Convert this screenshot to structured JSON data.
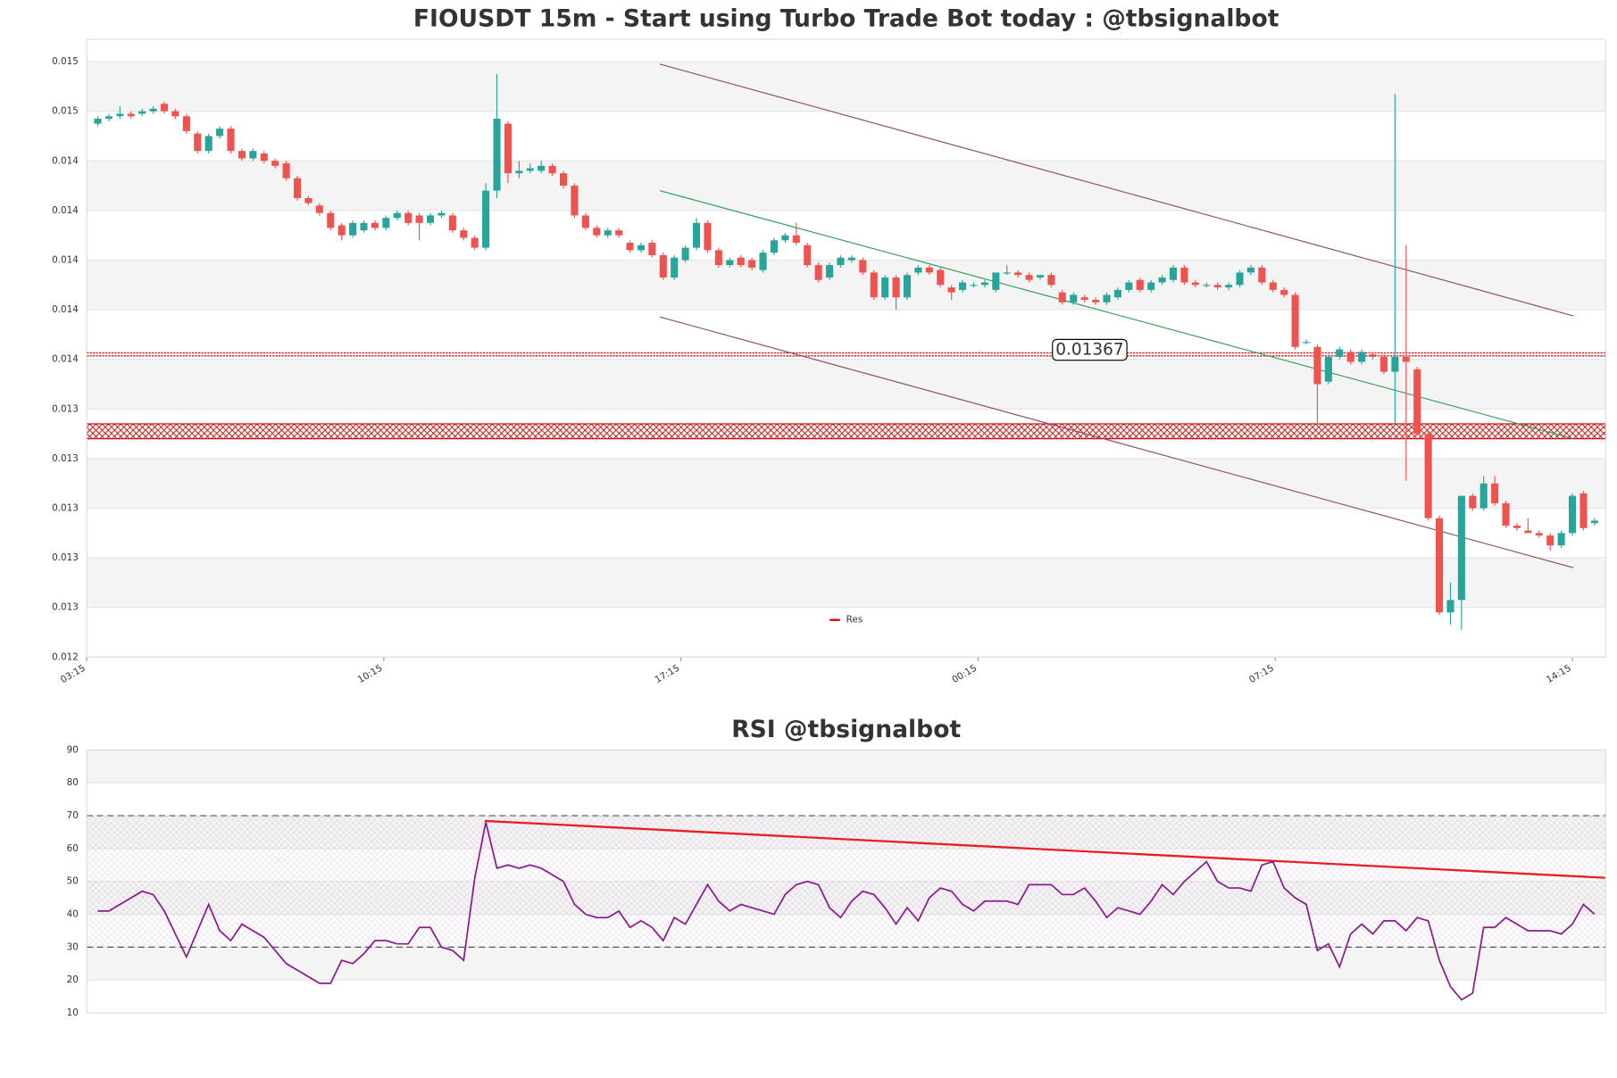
{
  "chart_data": [
    {
      "type": "candlestick",
      "title": "FIOUSDT 15m - Start using Turbo Trade Bot today : @tbsignalbot",
      "up_color": "#26a69a",
      "down_color": "#ef5350",
      "xlim": [
        0,
        137
      ],
      "xticks": [
        {
          "value": 0,
          "label": "03:15"
        },
        {
          "value": 26.8,
          "label": "10:15"
        },
        {
          "value": 53.6,
          "label": "17:15"
        },
        {
          "value": 80.4,
          "label": "00:15"
        },
        {
          "value": 107.2,
          "label": "07:15"
        },
        {
          "value": 134,
          "label": "14:15"
        }
      ],
      "ylim": [
        0.01245,
        0.01494
      ],
      "yticks": [
        {
          "value": 0.01245,
          "label": "0.012"
        },
        {
          "value": 0.01265,
          "label": "0.013"
        },
        {
          "value": 0.01285,
          "label": "0.013"
        },
        {
          "value": 0.01305,
          "label": "0.013"
        },
        {
          "value": 0.01325,
          "label": "0.013"
        },
        {
          "value": 0.01345,
          "label": "0.013"
        },
        {
          "value": 0.01365,
          "label": "0.014"
        },
        {
          "value": 0.01385,
          "label": "0.014"
        },
        {
          "value": 0.01405,
          "label": "0.014"
        },
        {
          "value": 0.01425,
          "label": "0.014"
        },
        {
          "value": 0.01445,
          "label": "0.014"
        },
        {
          "value": 0.01465,
          "label": "0.015"
        },
        {
          "value": 0.01485,
          "label": "0.015"
        }
      ],
      "legend": "lower center",
      "levels": [
        {
          "name": "Res",
          "value": 0.01367,
          "color": "#cc0000"
        }
      ],
      "zones": [
        {
          "from": 0.01333,
          "to": 0.01339,
          "color": "#cc0000"
        }
      ],
      "trendlines": [
        {
          "color": "#8e4d6b",
          "width": 1,
          "x": [
            51.7,
            134.1
          ],
          "y": [
            0.01484,
            0.013825
          ]
        },
        {
          "color": "#2e9e50",
          "width": 1,
          "x": [
            51.7,
            134.1
          ],
          "y": [
            0.01433,
            0.01333
          ]
        },
        {
          "color": "#8e4d6b",
          "width": 1,
          "x": [
            51.7,
            134.1
          ],
          "y": [
            0.013821,
            0.01281
          ]
        }
      ],
      "ohlc": [
        [
          0.0146,
          0.01463,
          0.01459,
          0.01462
        ],
        [
          0.01462,
          0.01464,
          0.01461,
          0.01463
        ],
        [
          0.01463,
          0.01467,
          0.01462,
          0.01464
        ],
        [
          0.01464,
          0.01465,
          0.01462,
          0.01463
        ],
        [
          0.01464,
          0.01466,
          0.01463,
          0.01465
        ],
        [
          0.01465,
          0.01467,
          0.01464,
          0.01466
        ],
        [
          0.01468,
          0.01469,
          0.01464,
          0.01465
        ],
        [
          0.01465,
          0.01466,
          0.01462,
          0.01463
        ],
        [
          0.01463,
          0.01464,
          0.01456,
          0.01457
        ],
        [
          0.01456,
          0.01457,
          0.01448,
          0.01449
        ],
        [
          0.01449,
          0.01456,
          0.01448,
          0.01455
        ],
        [
          0.01455,
          0.01459,
          0.01454,
          0.01458
        ],
        [
          0.01458,
          0.01459,
          0.01448,
          0.01449
        ],
        [
          0.01449,
          0.0145,
          0.01445,
          0.01446
        ],
        [
          0.01446,
          0.0145,
          0.01445,
          0.01449
        ],
        [
          0.01448,
          0.01449,
          0.01444,
          0.01445
        ],
        [
          0.01445,
          0.01446,
          0.01442,
          0.01443
        ],
        [
          0.01444,
          0.01445,
          0.01437,
          0.01438
        ],
        [
          0.01438,
          0.01439,
          0.01429,
          0.0143
        ],
        [
          0.0143,
          0.01431,
          0.01427,
          0.01428
        ],
        [
          0.01427,
          0.01428,
          0.01423,
          0.01424
        ],
        [
          0.01424,
          0.01425,
          0.01417,
          0.01418
        ],
        [
          0.01419,
          0.0142,
          0.01413,
          0.01415
        ],
        [
          0.01415,
          0.01421,
          0.01414,
          0.0142
        ],
        [
          0.01417,
          0.01421,
          0.01416,
          0.0142
        ],
        [
          0.0142,
          0.01421,
          0.01417,
          0.01418
        ],
        [
          0.01418,
          0.01423,
          0.01417,
          0.01422
        ],
        [
          0.01422,
          0.01425,
          0.01421,
          0.01424
        ],
        [
          0.01424,
          0.01425,
          0.01419,
          0.0142
        ],
        [
          0.01423,
          0.01424,
          0.01413,
          0.0142
        ],
        [
          0.0142,
          0.01424,
          0.01419,
          0.01423
        ],
        [
          0.01423,
          0.01425,
          0.01422,
          0.01424
        ],
        [
          0.01423,
          0.01424,
          0.01416,
          0.01417
        ],
        [
          0.01417,
          0.01418,
          0.01413,
          0.01414
        ],
        [
          0.01414,
          0.01415,
          0.01409,
          0.0141
        ],
        [
          0.0141,
          0.01436,
          0.01409,
          0.01433
        ],
        [
          0.01433,
          0.0148,
          0.0143,
          0.01462
        ],
        [
          0.0146,
          0.01461,
          0.01436,
          0.0144
        ],
        [
          0.0144,
          0.01445,
          0.01438,
          0.01441
        ],
        [
          0.01441,
          0.01444,
          0.0144,
          0.01442
        ],
        [
          0.01441,
          0.01445,
          0.0144,
          0.01443
        ],
        [
          0.01443,
          0.01444,
          0.01439,
          0.0144
        ],
        [
          0.0144,
          0.01441,
          0.01434,
          0.01435
        ],
        [
          0.01435,
          0.01436,
          0.01422,
          0.01423
        ],
        [
          0.01423,
          0.01424,
          0.01417,
          0.01418
        ],
        [
          0.01418,
          0.01419,
          0.01414,
          0.01415
        ],
        [
          0.01415,
          0.01418,
          0.01414,
          0.01417
        ],
        [
          0.01417,
          0.01418,
          0.01414,
          0.01415
        ],
        [
          0.01412,
          0.01413,
          0.01408,
          0.01409
        ],
        [
          0.01409,
          0.01412,
          0.01408,
          0.01411
        ],
        [
          0.01412,
          0.01413,
          0.01406,
          0.01407
        ],
        [
          0.01407,
          0.01408,
          0.01397,
          0.01398
        ],
        [
          0.01398,
          0.01407,
          0.01397,
          0.01406
        ],
        [
          0.01405,
          0.01411,
          0.01404,
          0.0141
        ],
        [
          0.0141,
          0.01422,
          0.01409,
          0.0142
        ],
        [
          0.0142,
          0.01421,
          0.01408,
          0.01409
        ],
        [
          0.01409,
          0.0141,
          0.01402,
          0.01403
        ],
        [
          0.01403,
          0.01406,
          0.01402,
          0.01405
        ],
        [
          0.01406,
          0.01407,
          0.01402,
          0.01403
        ],
        [
          0.01405,
          0.01406,
          0.01401,
          0.01402
        ],
        [
          0.01401,
          0.01409,
          0.014,
          0.01408
        ],
        [
          0.01408,
          0.01414,
          0.01407,
          0.01413
        ],
        [
          0.01413,
          0.01416,
          0.01412,
          0.01415
        ],
        [
          0.01415,
          0.0142,
          0.01411,
          0.01412
        ],
        [
          0.01411,
          0.01412,
          0.01402,
          0.01403
        ],
        [
          0.01403,
          0.01404,
          0.01396,
          0.01397
        ],
        [
          0.01398,
          0.01404,
          0.01397,
          0.01403
        ],
        [
          0.01403,
          0.01407,
          0.01402,
          0.01406
        ],
        [
          0.01405,
          0.01407,
          0.01404,
          0.01406
        ],
        [
          0.01405,
          0.01406,
          0.01399,
          0.014
        ],
        [
          0.014,
          0.01401,
          0.01389,
          0.0139
        ],
        [
          0.0139,
          0.01399,
          0.01389,
          0.01398
        ],
        [
          0.01398,
          0.01399,
          0.01385,
          0.0139
        ],
        [
          0.0139,
          0.014,
          0.01389,
          0.01399
        ],
        [
          0.014,
          0.01403,
          0.01399,
          0.01402
        ],
        [
          0.01402,
          0.01403,
          0.01399,
          0.014
        ],
        [
          0.01401,
          0.01402,
          0.01394,
          0.01395
        ],
        [
          0.01394,
          0.01395,
          0.01389,
          0.01392
        ],
        [
          0.01393,
          0.01397,
          0.01392,
          0.01396
        ],
        [
          0.01395,
          0.01396,
          0.01394,
          0.01395
        ],
        [
          0.01395,
          0.01397,
          0.01394,
          0.01396
        ],
        [
          0.01393,
          0.014,
          0.01392,
          0.014
        ],
        [
          0.014,
          0.01403,
          0.01399,
          0.014
        ],
        [
          0.014,
          0.01401,
          0.01398,
          0.01399
        ],
        [
          0.01399,
          0.014,
          0.01396,
          0.01397
        ],
        [
          0.01398,
          0.01399,
          0.01397,
          0.01399
        ],
        [
          0.01399,
          0.014,
          0.01394,
          0.01395
        ],
        [
          0.01392,
          0.01393,
          0.01387,
          0.01388
        ],
        [
          0.01388,
          0.01392,
          0.01387,
          0.01391
        ],
        [
          0.0139,
          0.01391,
          0.01388,
          0.01389
        ],
        [
          0.01389,
          0.0139,
          0.01387,
          0.01388
        ],
        [
          0.01388,
          0.01392,
          0.01387,
          0.01391
        ],
        [
          0.0139,
          0.01394,
          0.01389,
          0.01393
        ],
        [
          0.01393,
          0.01397,
          0.01392,
          0.01396
        ],
        [
          0.01397,
          0.01398,
          0.01392,
          0.01393
        ],
        [
          0.01393,
          0.01397,
          0.01392,
          0.01396
        ],
        [
          0.01396,
          0.01399,
          0.01395,
          0.01398
        ],
        [
          0.01397,
          0.01403,
          0.01396,
          0.01402
        ],
        [
          0.01402,
          0.01403,
          0.01395,
          0.01396
        ],
        [
          0.01396,
          0.01397,
          0.01394,
          0.01395
        ],
        [
          0.01395,
          0.01396,
          0.01394,
          0.01395
        ],
        [
          0.01395,
          0.01396,
          0.01393,
          0.01394
        ],
        [
          0.01394,
          0.01396,
          0.01393,
          0.01395
        ],
        [
          0.01395,
          0.01401,
          0.01394,
          0.014
        ],
        [
          0.014,
          0.01403,
          0.01399,
          0.01402
        ],
        [
          0.01402,
          0.01403,
          0.01395,
          0.01396
        ],
        [
          0.01396,
          0.01397,
          0.01392,
          0.01393
        ],
        [
          0.01393,
          0.01394,
          0.0139,
          0.01391
        ],
        [
          0.01391,
          0.01392,
          0.01369,
          0.0137
        ],
        [
          0.01372,
          0.01373,
          0.01371,
          0.01372
        ],
        [
          0.0137,
          0.01371,
          0.01339,
          0.01355
        ],
        [
          0.01356,
          0.01367,
          0.01355,
          0.01366
        ],
        [
          0.01366,
          0.0137,
          0.01365,
          0.01369
        ],
        [
          0.01368,
          0.01369,
          0.01363,
          0.01364
        ],
        [
          0.01364,
          0.01369,
          0.01363,
          0.01368
        ],
        [
          0.01367,
          0.01368,
          0.01365,
          0.01366
        ],
        [
          0.01366,
          0.01367,
          0.01359,
          0.0136
        ],
        [
          0.0136,
          0.01472,
          0.01339,
          0.01366
        ],
        [
          0.01366,
          0.01411,
          0.01316,
          0.01364
        ],
        [
          0.01361,
          0.01362,
          0.01334,
          0.01335
        ],
        [
          0.01335,
          0.01336,
          0.013,
          0.01301
        ],
        [
          0.01301,
          0.01302,
          0.01262,
          0.01263
        ],
        [
          0.01263,
          0.01275,
          0.01258,
          0.01268
        ],
        [
          0.01268,
          0.0131,
          0.01256,
          0.0131
        ],
        [
          0.0131,
          0.01311,
          0.01304,
          0.01305
        ],
        [
          0.01305,
          0.01318,
          0.01304,
          0.01315
        ],
        [
          0.01315,
          0.01318,
          0.01306,
          0.01307
        ],
        [
          0.01307,
          0.01308,
          0.01297,
          0.01298
        ],
        [
          0.01298,
          0.01299,
          0.01296,
          0.01297
        ],
        [
          0.01296,
          0.01301,
          0.01295,
          0.01295
        ],
        [
          0.01295,
          0.01296,
          0.01293,
          0.01294
        ],
        [
          0.01294,
          0.01295,
          0.01288,
          0.0129
        ],
        [
          0.0129,
          0.01296,
          0.01289,
          0.01295
        ],
        [
          0.01295,
          0.01311,
          0.01294,
          0.0131
        ],
        [
          0.01311,
          0.01312,
          0.01296,
          0.01297
        ],
        [
          0.01299,
          0.01301,
          0.01298,
          0.013
        ]
      ]
    },
    {
      "type": "line",
      "title": "RSI @tbsignalbot",
      "color": "#8b1a8b",
      "xlim": [
        0,
        137
      ],
      "ylim": [
        10,
        90
      ],
      "yticks": [
        10,
        20,
        30,
        40,
        50,
        60,
        70,
        80,
        90
      ],
      "guides": [
        70,
        30
      ],
      "zones": [
        {
          "from": 30,
          "to": 70,
          "color": "#9a4d9a"
        }
      ],
      "trendlines": [
        {
          "color": "#e62020",
          "width": 2,
          "x": [
            35.9,
            137
          ],
          "y": [
            68.4,
            51.1
          ]
        }
      ],
      "values": [
        41,
        41,
        43,
        45,
        47,
        46,
        41,
        34,
        27,
        35,
        43,
        35,
        32,
        37,
        35,
        33,
        29,
        25,
        23,
        21,
        19,
        19,
        26,
        25,
        28,
        32,
        32,
        31,
        31,
        36,
        36,
        30,
        29,
        26,
        51,
        68,
        54,
        55,
        54,
        55,
        54,
        52,
        50,
        43,
        40,
        39,
        39,
        41,
        36,
        38,
        36,
        32,
        39,
        37,
        43,
        49,
        44,
        41,
        43,
        42,
        41,
        40,
        46,
        49,
        50,
        49,
        42,
        39,
        44,
        47,
        46,
        42,
        37,
        42,
        38,
        45,
        48,
        47,
        43,
        41,
        44,
        44,
        44,
        43,
        49,
        49,
        49,
        46,
        46,
        48,
        44,
        39,
        42,
        41,
        40,
        44,
        49,
        46,
        50,
        53,
        56,
        50,
        48,
        48,
        47,
        55,
        56,
        48,
        45,
        43,
        29,
        31,
        24,
        34,
        37,
        34,
        38,
        38,
        35,
        39,
        38,
        26,
        18,
        14,
        16,
        36,
        36,
        39,
        37,
        35,
        35,
        35,
        34,
        37,
        43,
        40
      ]
    }
  ]
}
